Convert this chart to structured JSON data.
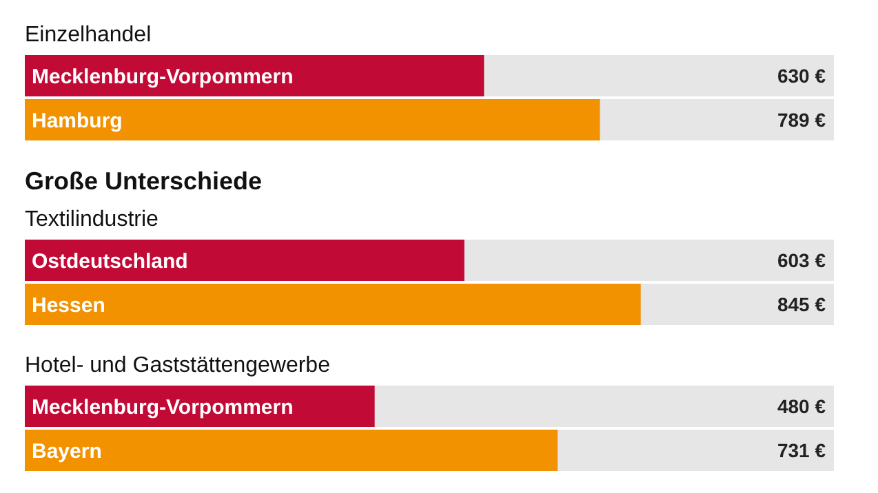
{
  "chart_data": {
    "type": "bar",
    "orientation": "horizontal",
    "categories": [
      "Mecklenburg-Vorpommern",
      "Hamburg",
      "Ostdeutschland",
      "Hessen",
      "Mecklenburg-Vorpommern",
      "Bayern"
    ],
    "values": [
      630,
      789,
      603,
      845,
      480,
      731
    ],
    "colors": [
      "#c20a36",
      "#f39200",
      "#c20a36",
      "#f39200",
      "#c20a36",
      "#f39200"
    ],
    "value_labels": [
      "630 €",
      "789 €",
      "603 €",
      "845 €",
      "480 €",
      "731 €"
    ],
    "xlim": [
      0,
      1110
    ],
    "tick_labels": false,
    "annotations": [
      "Einzelhandel",
      "Große Unterschiede",
      "Textilindustrie",
      "Hotel- und Gaststättengewerbe"
    ]
  }
}
